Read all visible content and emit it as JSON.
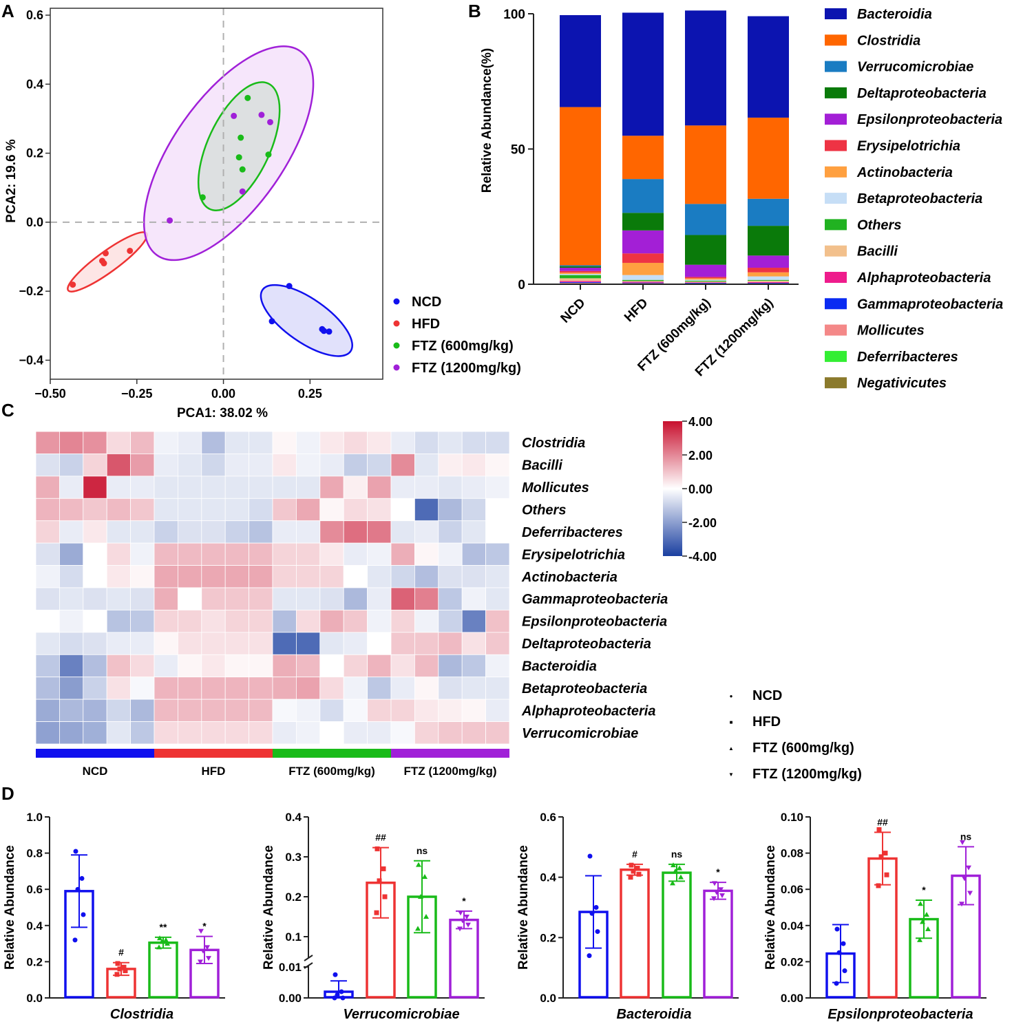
{
  "panel_labels": {
    "a": "A",
    "b": "B",
    "c": "C",
    "d": "D"
  },
  "colors": {
    "NCD": "#1010ee",
    "HFD": "#ee3333",
    "FTZ600": "#19bb19",
    "FTZ1200": "#a020d8",
    "ellipse_NCD_fill": "#dcdcfa",
    "ellipse_HFD_fill": "#fde0e0",
    "ellipse_FTZ600_fill": "#d8dedc",
    "ellipse_FTZ1200_fill": "#f5e2fa"
  },
  "chart_data": [
    {
      "id": "pca",
      "type": "scatter",
      "title": "A",
      "xlabel": "PCA1: 38.02 %",
      "ylabel": "PCA2: 19.6 %",
      "xlim": [
        -0.5,
        0.46
      ],
      "ylim": [
        -0.455,
        0.62
      ],
      "xticks": [
        -0.5,
        -0.25,
        0.0,
        0.25
      ],
      "xtick_labels": [
        "−0.50",
        "−0.25",
        "0.00",
        "0.25"
      ],
      "yticks": [
        -0.4,
        -0.2,
        0.0,
        0.2,
        0.4,
        0.6
      ],
      "ytick_labels": [
        "−0.4",
        "−0.2",
        "0.0",
        "0.2",
        "0.4",
        "0.6"
      ],
      "legend": [
        "NCD",
        "HFD",
        "FTZ (600mg/kg)",
        "FTZ (1200mg/kg)"
      ],
      "series": [
        {
          "name": "NCD",
          "points": [
            [
              0.19,
              -0.185
            ],
            [
              0.14,
              -0.287
            ],
            [
              0.285,
              -0.31
            ],
            [
              0.29,
              -0.315
            ],
            [
              0.305,
              -0.317
            ]
          ]
        },
        {
          "name": "HFD",
          "points": [
            [
              -0.435,
              -0.181
            ],
            [
              -0.35,
              -0.112
            ],
            [
              -0.345,
              -0.119
            ],
            [
              -0.34,
              -0.09
            ],
            [
              -0.27,
              -0.083
            ]
          ]
        },
        {
          "name": "FTZ (600mg/kg)",
          "points": [
            [
              0.07,
              0.36
            ],
            [
              0.05,
              0.245
            ],
            [
              0.13,
              0.196
            ],
            [
              0.045,
              0.188
            ],
            [
              0.055,
              0.153
            ],
            [
              -0.06,
              0.072
            ]
          ]
        },
        {
          "name": "FTZ (1200mg/kg)",
          "points": [
            [
              0.03,
              0.308
            ],
            [
              0.11,
              0.311
            ],
            [
              0.135,
              0.29
            ],
            [
              0.055,
              0.089
            ],
            [
              -0.155,
              0.005
            ]
          ]
        }
      ],
      "ellipses": [
        {
          "group": "NCD",
          "center": [
            0.24,
            -0.285
          ],
          "semi_axes": [
            0.155,
            0.063
          ],
          "angle_deg": -35
        },
        {
          "group": "HFD",
          "center": [
            -0.335,
            -0.115
          ],
          "semi_axes": [
            0.14,
            0.03
          ],
          "angle_deg": 36
        },
        {
          "group": "FTZ (1200mg/kg)",
          "center": [
            0.015,
            0.2
          ],
          "semi_axes": [
            0.36,
            0.16
          ],
          "angle_deg": 55
        },
        {
          "group": "FTZ (600mg/kg)",
          "center": [
            0.045,
            0.22
          ],
          "semi_axes": [
            0.2,
            0.09
          ],
          "angle_deg": 65
        }
      ]
    },
    {
      "id": "stacked",
      "type": "bar",
      "title": "B",
      "ylabel": "Relative Abundance(%)",
      "ylim": [
        0,
        100
      ],
      "yticks": [
        0,
        50,
        100
      ],
      "categories": [
        "NCD",
        "HFD",
        "FTZ (600mg/kg)",
        "FTZ (1200mg/kg)"
      ],
      "stack_order_bottom_to_top": [
        "Negativicutes",
        "Deferribacteres",
        "Mollicutes",
        "Gammaproteobacteria",
        "Alphaproteobacteria",
        "Bacilli",
        "Others",
        "Betaproteobacteria",
        "Actinobacteria",
        "Erysipelotrichia",
        "Epsilonproteobacteria",
        "Deltaproteobacteria",
        "Verrucomicrobiae",
        "Clostridia",
        "Bacteroidia"
      ],
      "series": [
        {
          "name": "Bacteroidia",
          "color": "#0c14b0",
          "values": [
            34,
            45.5,
            42.5,
            37.5
          ]
        },
        {
          "name": "Clostridia",
          "color": "#ff6600",
          "values": [
            58.5,
            16,
            29,
            30
          ]
        },
        {
          "name": "Verrucomicrobiae",
          "color": "#1a7cc2",
          "values": [
            0.4,
            12.5,
            11.5,
            10
          ]
        },
        {
          "name": "Deltaproteobacteria",
          "color": "#0a7a0a",
          "values": [
            0.5,
            6.5,
            11,
            11
          ]
        },
        {
          "name": "Epsilonproteobacteria",
          "color": "#a31fd6",
          "values": [
            1.2,
            8.5,
            4.5,
            4.5
          ]
        },
        {
          "name": "Erysipelotrichia",
          "color": "#ee3344",
          "values": [
            0.6,
            3.5,
            0.5,
            1.7
          ]
        },
        {
          "name": "Actinobacteria",
          "color": "#ffa040",
          "values": [
            0.5,
            4.5,
            0.5,
            1.5
          ]
        },
        {
          "name": "Betaproteobacteria",
          "color": "#c6def6",
          "values": [
            0.4,
            1.8,
            0.4,
            1.3
          ]
        },
        {
          "name": "Others",
          "color": "#21b221",
          "values": [
            1.2,
            0.4,
            0.3,
            0.3
          ]
        },
        {
          "name": "Bacilli",
          "color": "#f2c08c",
          "values": [
            1.0,
            0.3,
            0.3,
            0.5
          ]
        },
        {
          "name": "Alphaproteobacteria",
          "color": "#ee1c8c",
          "values": [
            0.4,
            0.3,
            0.2,
            0.3
          ]
        },
        {
          "name": "Gammaproteobacteria",
          "color": "#0a2bf2",
          "values": [
            0.3,
            0.2,
            0.2,
            0.2
          ]
        },
        {
          "name": "Mollicutes",
          "color": "#f48888",
          "values": [
            0.2,
            0.2,
            0.1,
            0.1
          ]
        },
        {
          "name": "Deferribacteres",
          "color": "#33ee33",
          "values": [
            0.2,
            0.1,
            0.1,
            0.1
          ]
        },
        {
          "name": "Negativicutes",
          "color": "#8b7a2c",
          "values": [
            0.1,
            0.1,
            0.1,
            0.1
          ]
        }
      ]
    },
    {
      "id": "heatmap",
      "type": "heatmap",
      "title": "C",
      "rows": [
        "Clostridia",
        "Bacilli",
        "Mollicutes",
        "Others",
        "Deferribacteres",
        "Erysipelotrichia",
        "Actinobacteria",
        "Gammaproteobacteria",
        "Epsilonproteobacteria",
        "Deltaproteobacteria",
        "Bacteroidia",
        "Betaproteobacteria",
        "Alphaproteobacteria",
        "Verrucomicrobiae"
      ],
      "groups": [
        {
          "name": "NCD",
          "n": 5
        },
        {
          "name": "HFD",
          "n": 5
        },
        {
          "name": "FTZ (600mg/kg)",
          "n": 5
        },
        {
          "name": "FTZ (1200mg/kg)",
          "n": 5
        }
      ],
      "color_range": [
        -4.0,
        4.0
      ],
      "colorbar_ticks": [
        "4.00",
        "2.00",
        "0.00",
        "-2.00",
        "-4.00"
      ],
      "legend": [
        "NCD",
        "HFD",
        "FTZ (600mg/kg)",
        "FTZ (1200mg/kg)"
      ],
      "values": [
        [
          1.6,
          1.9,
          1.7,
          0.5,
          1.0,
          -0.2,
          -0.3,
          -1.2,
          -0.4,
          -0.4,
          0.1,
          -0.2,
          0.3,
          0.5,
          0.3,
          -0.3,
          -0.6,
          -0.4,
          -0.6,
          -0.6
        ],
        [
          -0.5,
          -0.8,
          0.6,
          2.7,
          1.5,
          -0.3,
          -0.4,
          -0.7,
          -0.3,
          -0.3,
          0.3,
          -0.2,
          -0.3,
          -0.9,
          -0.7,
          1.8,
          -0.4,
          0.2,
          0.3,
          0.1
        ],
        [
          1.2,
          -0.3,
          3.6,
          -0.3,
          -0.3,
          -0.4,
          -0.4,
          -0.4,
          -0.4,
          -0.4,
          -0.4,
          -0.4,
          1.3,
          0.2,
          1.4,
          -0.3,
          -0.3,
          -0.4,
          -0.3,
          -0.2
        ],
        [
          1.1,
          1.0,
          0.8,
          1.0,
          0.8,
          -0.4,
          -0.4,
          -0.4,
          -0.4,
          -0.6,
          0.8,
          1.3,
          0.1,
          0.5,
          0.4,
          0.0,
          -3.0,
          -1.3,
          -0.7,
          0.0
        ],
        [
          0.6,
          -0.3,
          0.3,
          -0.4,
          -0.4,
          -0.8,
          -0.5,
          -0.5,
          -0.8,
          -1.1,
          -0.3,
          -0.3,
          1.8,
          2.3,
          2.1,
          -0.4,
          -0.3,
          -0.8,
          -0.4,
          0.0
        ],
        [
          -0.5,
          -1.6,
          0.0,
          0.5,
          -0.2,
          1.0,
          1.0,
          1.0,
          1.0,
          1.0,
          0.6,
          0.6,
          0.3,
          -0.3,
          -0.2,
          1.2,
          0.1,
          -0.2,
          -1.2,
          -1.0
        ],
        [
          -0.2,
          -0.6,
          0.0,
          0.3,
          0.1,
          1.3,
          1.3,
          1.3,
          1.3,
          1.3,
          0.6,
          0.6,
          0.6,
          0.0,
          -0.4,
          -0.7,
          -1.2,
          -0.5,
          -0.5,
          -0.4
        ],
        [
          -0.5,
          -0.4,
          -0.5,
          -0.4,
          -0.5,
          1.2,
          0.0,
          0.8,
          0.8,
          0.8,
          -0.4,
          -0.4,
          -0.5,
          -1.3,
          -0.3,
          2.5,
          2.0,
          -1.0,
          -0.2,
          -0.4
        ],
        [
          0.0,
          -0.2,
          0.0,
          -1.1,
          -1.0,
          0.6,
          0.6,
          0.4,
          0.6,
          0.6,
          -1.2,
          0.5,
          1.2,
          0.8,
          -0.2,
          0.6,
          -0.2,
          -0.8,
          -2.5,
          0.9
        ],
        [
          -0.4,
          -0.6,
          -0.5,
          -0.3,
          -0.3,
          0.1,
          0.4,
          0.4,
          0.4,
          0.4,
          -3.0,
          -3.0,
          -0.4,
          -0.3,
          0.0,
          0.8,
          0.8,
          1.0,
          0.4,
          0.8
        ],
        [
          -1.0,
          -2.5,
          -1.2,
          0.9,
          0.5,
          -0.3,
          0.1,
          0.3,
          0.1,
          0.1,
          1.2,
          1.0,
          0.0,
          0.6,
          1.1,
          0.4,
          1.0,
          -1.3,
          -1.0,
          -0.2
        ],
        [
          -1.2,
          -1.9,
          -0.8,
          0.4,
          -0.1,
          1.1,
          1.1,
          1.1,
          1.1,
          1.1,
          1.2,
          1.4,
          0.5,
          -0.2,
          -1.0,
          -0.3,
          0.1,
          -0.5,
          -0.4,
          -0.4
        ],
        [
          -1.6,
          -1.3,
          -1.4,
          -0.7,
          -1.3,
          1.0,
          1.0,
          1.0,
          1.0,
          1.0,
          -0.1,
          -0.2,
          -0.6,
          -0.1,
          0.6,
          0.6,
          0.3,
          0.2,
          0.1,
          -0.3
        ],
        [
          -1.8,
          -1.7,
          -1.5,
          -0.4,
          -1.0,
          0.5,
          0.5,
          0.5,
          0.5,
          0.5,
          -0.3,
          -0.2,
          0.0,
          -0.3,
          -0.3,
          -0.1,
          0.6,
          0.8,
          0.8,
          0.8
        ]
      ]
    },
    {
      "id": "d1",
      "type": "bar",
      "xlabel": "Clostridia",
      "ylabel": "Relative Abundance",
      "ylim": [
        0,
        1.0
      ],
      "yticks": [
        0.0,
        0.2,
        0.4,
        0.6,
        0.8,
        1.0
      ],
      "ytick_labels": [
        "0.0",
        "0.2",
        "0.4",
        "0.6",
        "0.8",
        "1.0"
      ],
      "categories": [
        "NCD",
        "HFD",
        "FTZ (600mg/kg)",
        "FTZ (1200mg/kg)"
      ],
      "values": [
        0.59,
        0.16,
        0.305,
        0.265
      ],
      "sd": [
        0.2,
        0.035,
        0.03,
        0.075
      ],
      "significance": [
        "",
        "#",
        "**",
        "*"
      ],
      "points": [
        [
          0.81,
          0.66,
          0.6,
          0.46,
          0.32
        ],
        [
          0.19,
          0.17,
          0.16,
          0.15,
          0.13
        ],
        [
          0.33,
          0.32,
          0.31,
          0.3,
          0.28
        ],
        [
          0.37,
          0.28,
          0.26,
          0.22,
          0.2
        ]
      ]
    },
    {
      "id": "d2",
      "type": "bar",
      "xlabel": "Verrucomicrobiae",
      "ylabel": "Relative Abundance",
      "ylim": [
        0,
        0.4
      ],
      "axis_break": [
        0.01,
        0.05
      ],
      "yticks": [
        0.0,
        0.01,
        0.1,
        0.2,
        0.3,
        0.4
      ],
      "ytick_labels": [
        "0.00",
        "0.01",
        "0.1",
        "0.2",
        "0.3",
        "0.4"
      ],
      "categories": [
        "NCD",
        "HFD",
        "FTZ (600mg/kg)",
        "FTZ (1200mg/kg)"
      ],
      "values": [
        0.002,
        0.235,
        0.2,
        0.142
      ],
      "sd": [
        0.0035,
        0.088,
        0.09,
        0.022
      ],
      "significance": [
        "",
        "##",
        "ns",
        "*"
      ],
      "points": [
        [
          0.0075,
          0.002,
          0.001,
          0.0,
          0.0
        ],
        [
          0.32,
          0.27,
          0.24,
          0.2,
          0.16
        ],
        [
          0.28,
          0.25,
          0.2,
          0.15,
          0.12
        ],
        [
          0.16,
          0.15,
          0.14,
          0.13,
          0.12
        ]
      ]
    },
    {
      "id": "d3",
      "type": "bar",
      "xlabel": "Bacteroidia",
      "ylabel": "Relative Abundance",
      "ylim": [
        0,
        0.6
      ],
      "yticks": [
        0.0,
        0.2,
        0.4,
        0.6
      ],
      "ytick_labels": [
        "0.0",
        "0.2",
        "0.4",
        "0.6"
      ],
      "categories": [
        "NCD",
        "HFD",
        "FTZ (600mg/kg)",
        "FTZ (1200mg/kg)"
      ],
      "values": [
        0.285,
        0.425,
        0.415,
        0.355
      ],
      "sd": [
        0.12,
        0.018,
        0.028,
        0.028
      ],
      "significance": [
        "",
        "#",
        "ns",
        "*"
      ],
      "points": [
        [
          0.47,
          0.3,
          0.28,
          0.22,
          0.14
        ],
        [
          0.44,
          0.43,
          0.42,
          0.41,
          0.4
        ],
        [
          0.44,
          0.43,
          0.42,
          0.4,
          0.38
        ],
        [
          0.38,
          0.36,
          0.35,
          0.34,
          0.33
        ]
      ]
    },
    {
      "id": "d4",
      "type": "bar",
      "xlabel": "Epsilonproteobacteria",
      "ylabel": "Relative Abundance",
      "ylim": [
        0,
        0.1
      ],
      "yticks": [
        0.0,
        0.02,
        0.04,
        0.06,
        0.08,
        0.1
      ],
      "ytick_labels": [
        "0.00",
        "0.02",
        "0.04",
        "0.06",
        "0.08",
        "0.10"
      ],
      "categories": [
        "NCD",
        "HFD",
        "FTZ (600mg/kg)",
        "FTZ (1200mg/kg)"
      ],
      "values": [
        0.0245,
        0.077,
        0.0435,
        0.0675
      ],
      "sd": [
        0.016,
        0.0145,
        0.0105,
        0.016
      ],
      "significance": [
        "",
        "##",
        "*",
        "ns"
      ],
      "points": [
        [
          0.038,
          0.03,
          0.025,
          0.015,
          0.008
        ],
        [
          0.093,
          0.08,
          0.078,
          0.068,
          0.062
        ],
        [
          0.052,
          0.046,
          0.042,
          0.038,
          0.032
        ],
        [
          0.086,
          0.072,
          0.066,
          0.058,
          0.052
        ]
      ]
    }
  ]
}
